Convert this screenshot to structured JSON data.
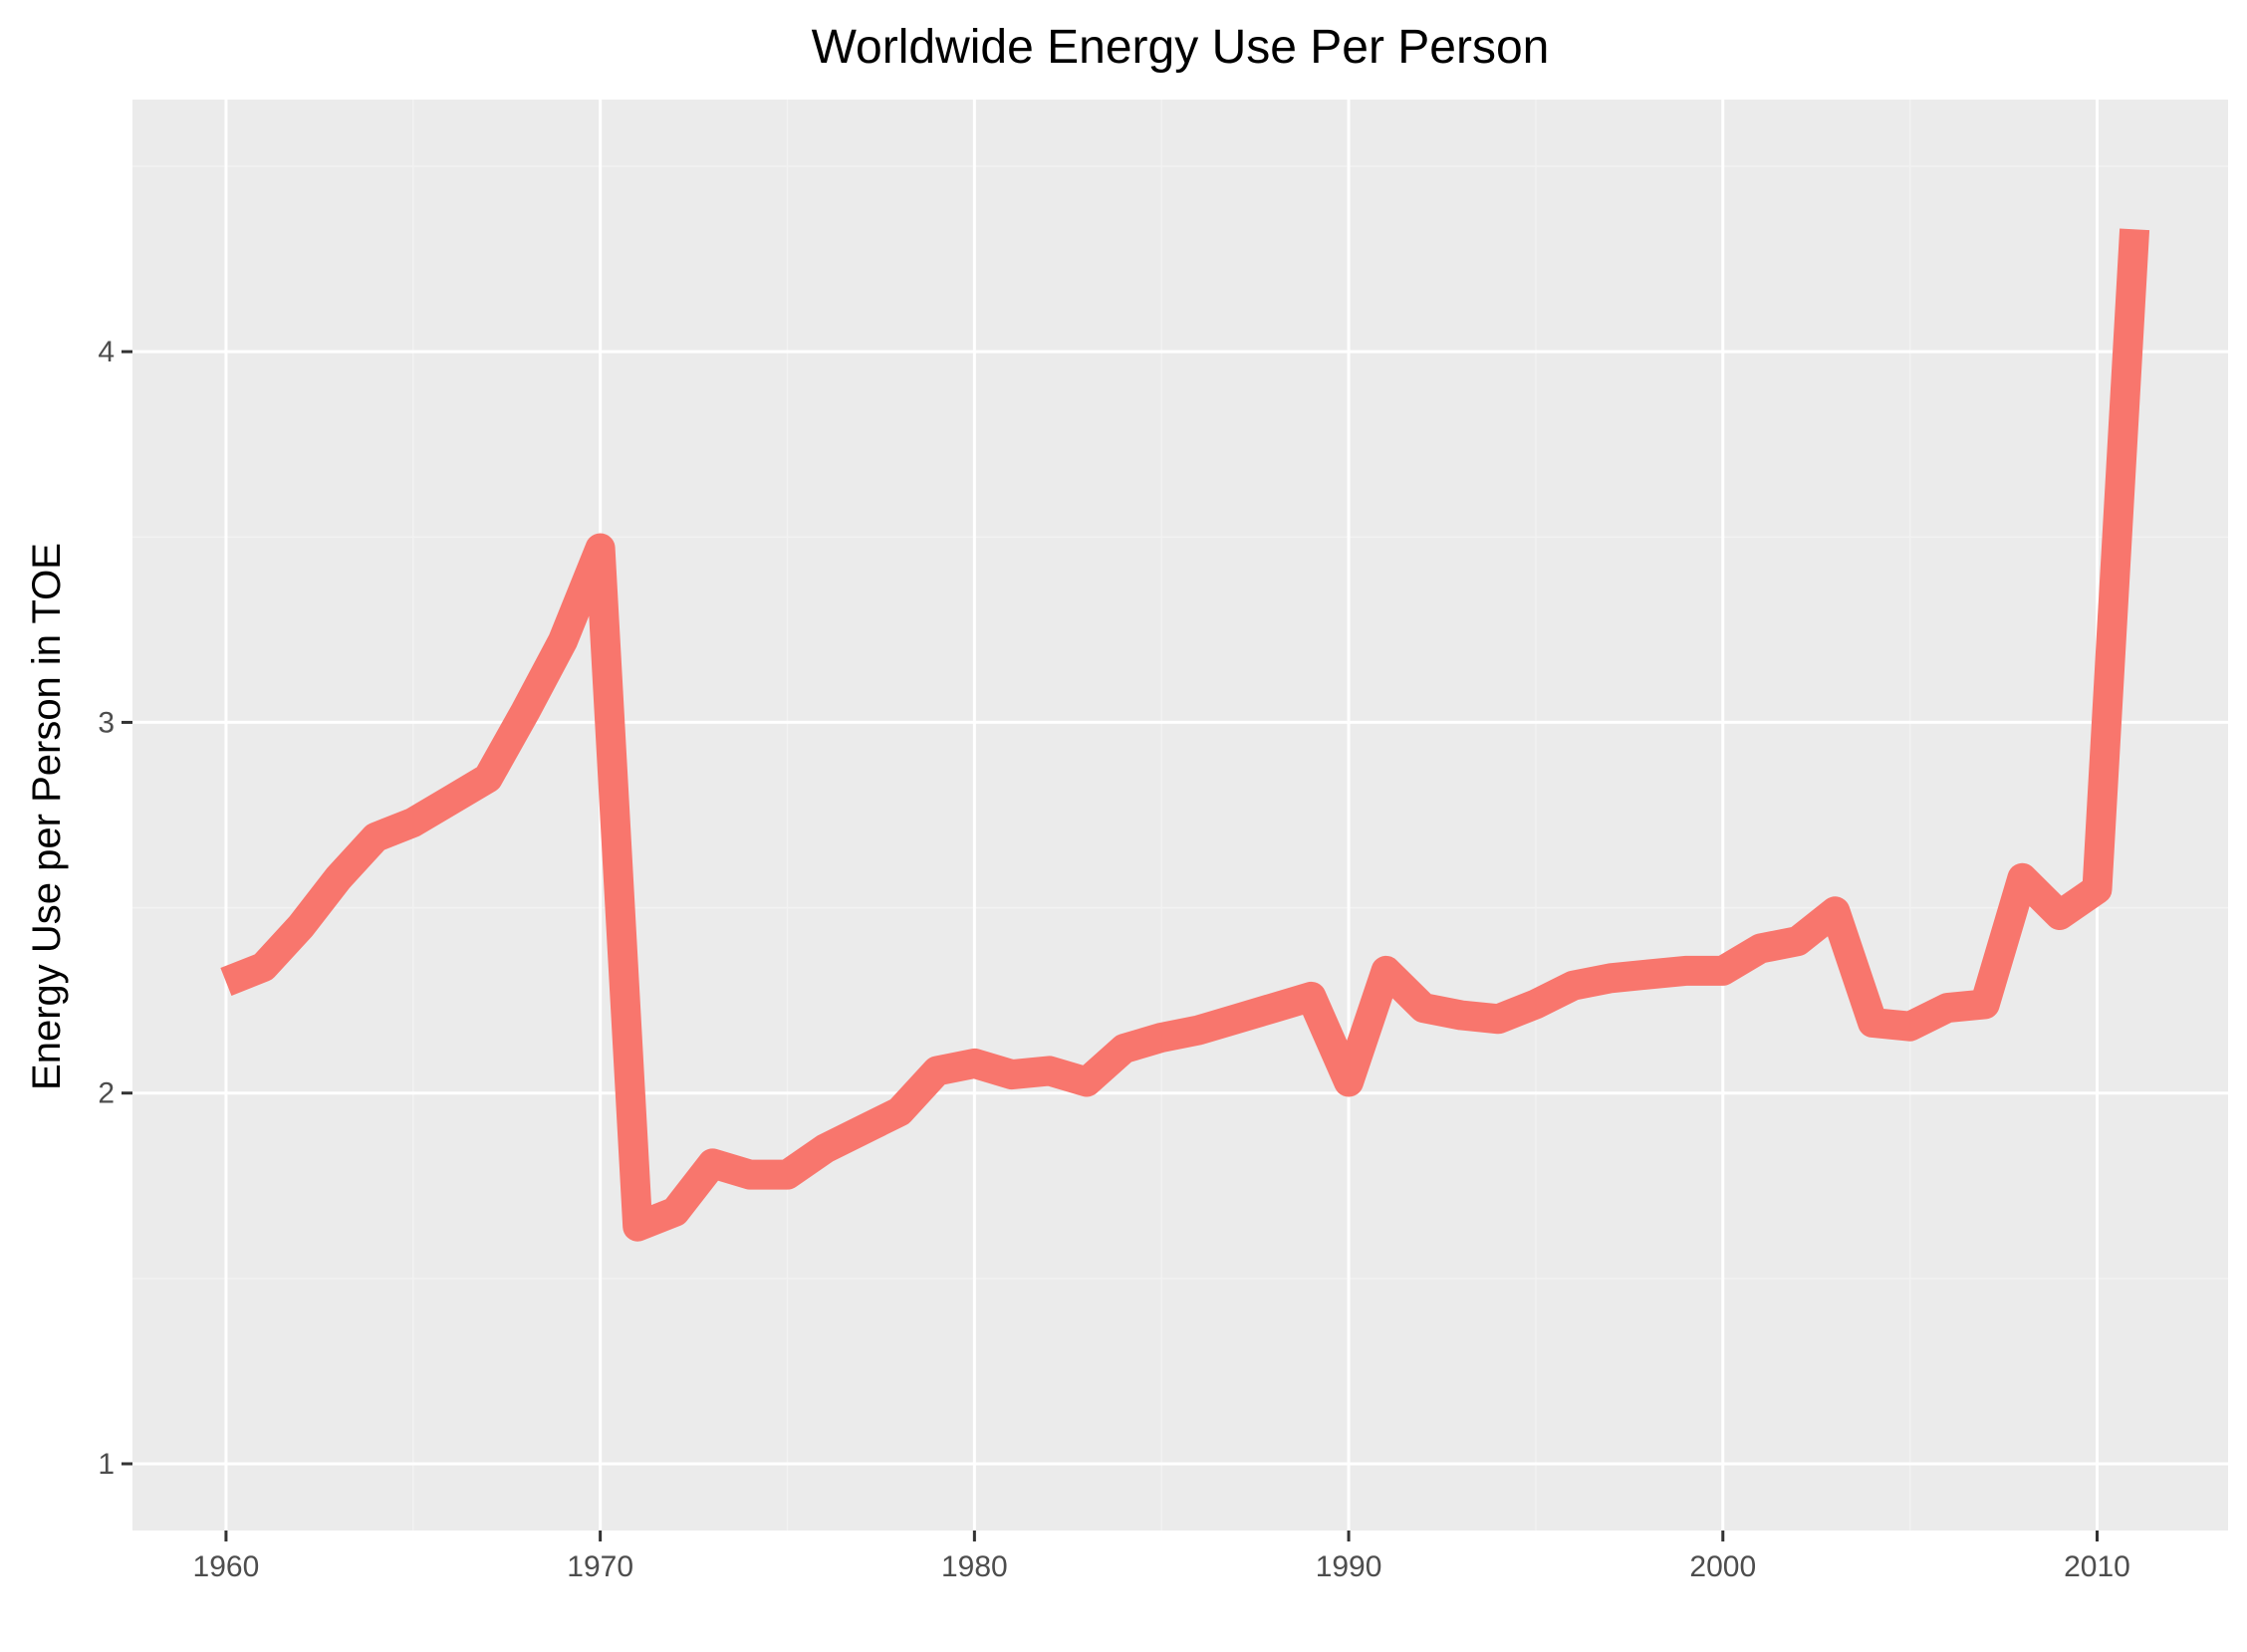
{
  "chart_data": {
    "type": "line",
    "title": "Worldwide Energy Use Per Person",
    "xlabel": "",
    "ylabel": "Energy Use per Person in TOE",
    "xlim": [
      1957.5,
      2013.5
    ],
    "ylim": [
      0.82,
      4.68
    ],
    "x_ticks": [
      1960,
      1970,
      1980,
      1990,
      2000,
      2010
    ],
    "x_tick_labels": [
      "1960",
      "1970",
      "1980",
      "1990",
      "2000",
      "2010"
    ],
    "x_minor_ticks": [
      1965,
      1975,
      1985,
      1995,
      2005
    ],
    "y_ticks": [
      1,
      2,
      3,
      4
    ],
    "y_tick_labels": [
      "1",
      "2",
      "3",
      "4"
    ],
    "y_minor_ticks": [
      1.5,
      2.5,
      3.5,
      4.5
    ],
    "grid": true,
    "legend": "none",
    "series": [
      {
        "color": "#F8766D",
        "x": [
          1960,
          1961,
          1962,
          1963,
          1964,
          1965,
          1966,
          1967,
          1968,
          1969,
          1970,
          1971,
          1972,
          1973,
          1974,
          1975,
          1976,
          1977,
          1978,
          1979,
          1980,
          1981,
          1982,
          1983,
          1984,
          1985,
          1986,
          1987,
          1988,
          1989,
          1990,
          1991,
          1992,
          1993,
          1994,
          1995,
          1996,
          1997,
          1998,
          1999,
          2000,
          2001,
          2002,
          2003,
          2004,
          2005,
          2006,
          2007,
          2008,
          2009,
          2010,
          2011
        ],
        "y": [
          2.3,
          2.34,
          2.45,
          2.58,
          2.69,
          2.73,
          2.79,
          2.85,
          3.03,
          3.22,
          3.47,
          1.64,
          1.68,
          1.81,
          1.78,
          1.78,
          1.85,
          1.9,
          1.95,
          2.06,
          2.08,
          2.05,
          2.06,
          2.03,
          2.12,
          2.15,
          2.17,
          2.2,
          2.23,
          2.26,
          2.03,
          2.33,
          2.23,
          2.21,
          2.2,
          2.24,
          2.29,
          2.31,
          2.32,
          2.33,
          2.33,
          2.39,
          2.41,
          2.49,
          2.19,
          2.18,
          2.23,
          2.24,
          2.58,
          2.48,
          2.55,
          4.33
        ]
      }
    ]
  },
  "colors": {
    "panel_background": "#EBEBEB",
    "grid_major": "#FFFFFF",
    "grid_minor": "#F2F2F2",
    "axis_text": "#4D4D4D",
    "tick_mark": "#333333"
  }
}
